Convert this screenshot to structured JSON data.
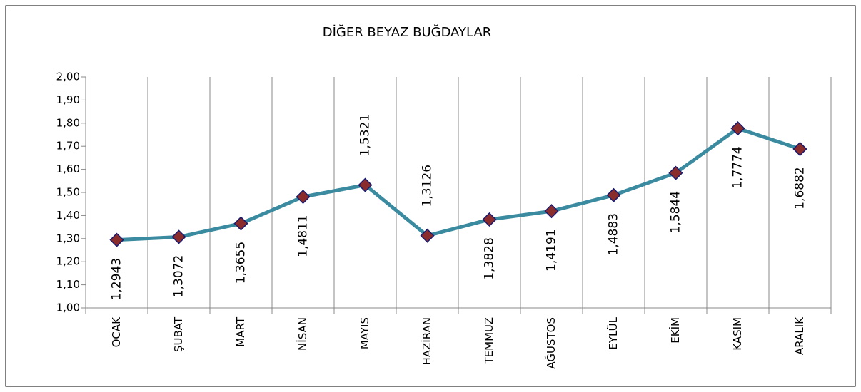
{
  "chart_data": {
    "type": "line",
    "title": "DİĞER BEYAZ BUĞDAYLAR",
    "categories": [
      "OCAK",
      "ŞUBAT",
      "MART",
      "NİSAN",
      "MAYIS",
      "HAZİRAN",
      "TEMMUZ",
      "AĞUSTOS",
      "EYLÜL",
      "EKİM",
      "KASIM",
      "ARALIK"
    ],
    "series": [
      {
        "color": "#3a8aa0",
        "marker_color": "#8b2c2c",
        "values": [
          1.2943,
          1.3072,
          1.3655,
          1.4811,
          1.5321,
          1.3126,
          1.3828,
          1.4191,
          1.4883,
          1.5844,
          1.7774,
          1.6882
        ],
        "value_labels": [
          "1,2943",
          "1,3072",
          "1,3655",
          "1,4811",
          "1,5321",
          "1,3126",
          "1,3828",
          "1,4191",
          "1,4883",
          "1,5844",
          "1,7774",
          "1,6882"
        ]
      }
    ],
    "ylim": [
      1,
      2
    ],
    "yticks": [
      {
        "value": 1,
        "label": "1,00"
      },
      {
        "value": 1.1,
        "label": "1,10"
      },
      {
        "value": 1.2,
        "label": "1,20"
      },
      {
        "value": 1.3,
        "label": "1,30"
      },
      {
        "value": 1.4,
        "label": "1,40"
      },
      {
        "value": 1.5,
        "label": "1,50"
      },
      {
        "value": 1.6,
        "label": "1,60"
      },
      {
        "value": 1.7,
        "label": "1,70"
      },
      {
        "value": 1.8,
        "label": "1,80"
      },
      {
        "value": 1.9,
        "label": "1,90"
      },
      {
        "value": 2,
        "label": "2,00"
      }
    ],
    "grid": "x"
  }
}
